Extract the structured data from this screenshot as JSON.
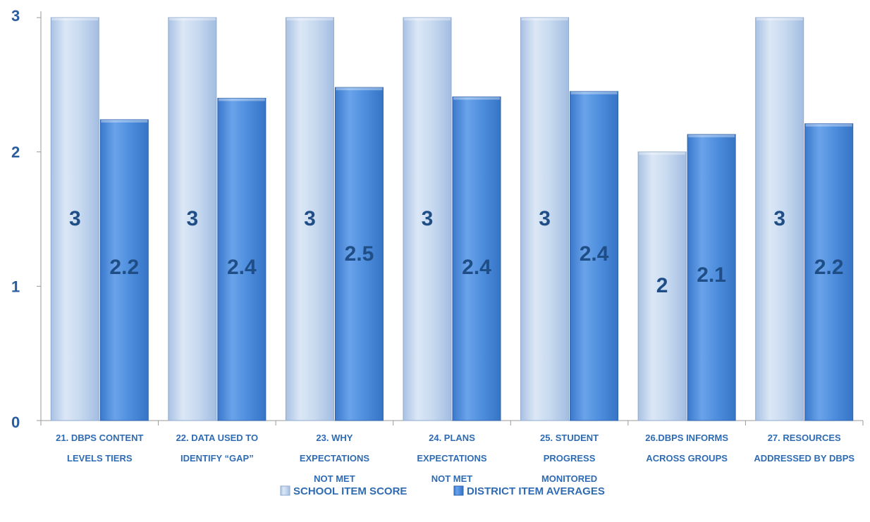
{
  "chart_data": {
    "type": "bar",
    "categories": [
      [
        "21.  DBPS content",
        "levels tiers"
      ],
      [
        "22. Data used to",
        "identify “gap”"
      ],
      [
        "23. Why",
        "expectations",
        "not met"
      ],
      [
        "24. Plans",
        "expectations",
        "not met"
      ],
      [
        "25. Student",
        "progress",
        "monitored"
      ],
      [
        "26.DBPS informs",
        "across groups"
      ],
      [
        "27. Resources",
        "addressed by DBPS"
      ]
    ],
    "series": [
      {
        "name": "School Item Score",
        "values": [
          3,
          3,
          3,
          3,
          3,
          2,
          3
        ],
        "labels": [
          "3",
          "3",
          "3",
          "3",
          "3",
          "2",
          "3"
        ],
        "color": "#c6d9f1"
      },
      {
        "name": "District Item Averages",
        "values": [
          2.24,
          2.4,
          2.48,
          2.41,
          2.45,
          2.13,
          2.21
        ],
        "labels": [
          "2.2",
          "2.4",
          "2.5",
          "2.4",
          "2.4",
          "2.1",
          "2.2"
        ],
        "color": "#4f8fde"
      }
    ],
    "ylim": [
      0,
      3
    ],
    "yticks": [
      "0",
      "1",
      "2",
      "3"
    ],
    "title": "",
    "xlabel": "",
    "ylabel": "",
    "grid": false,
    "legend": "bottom"
  }
}
